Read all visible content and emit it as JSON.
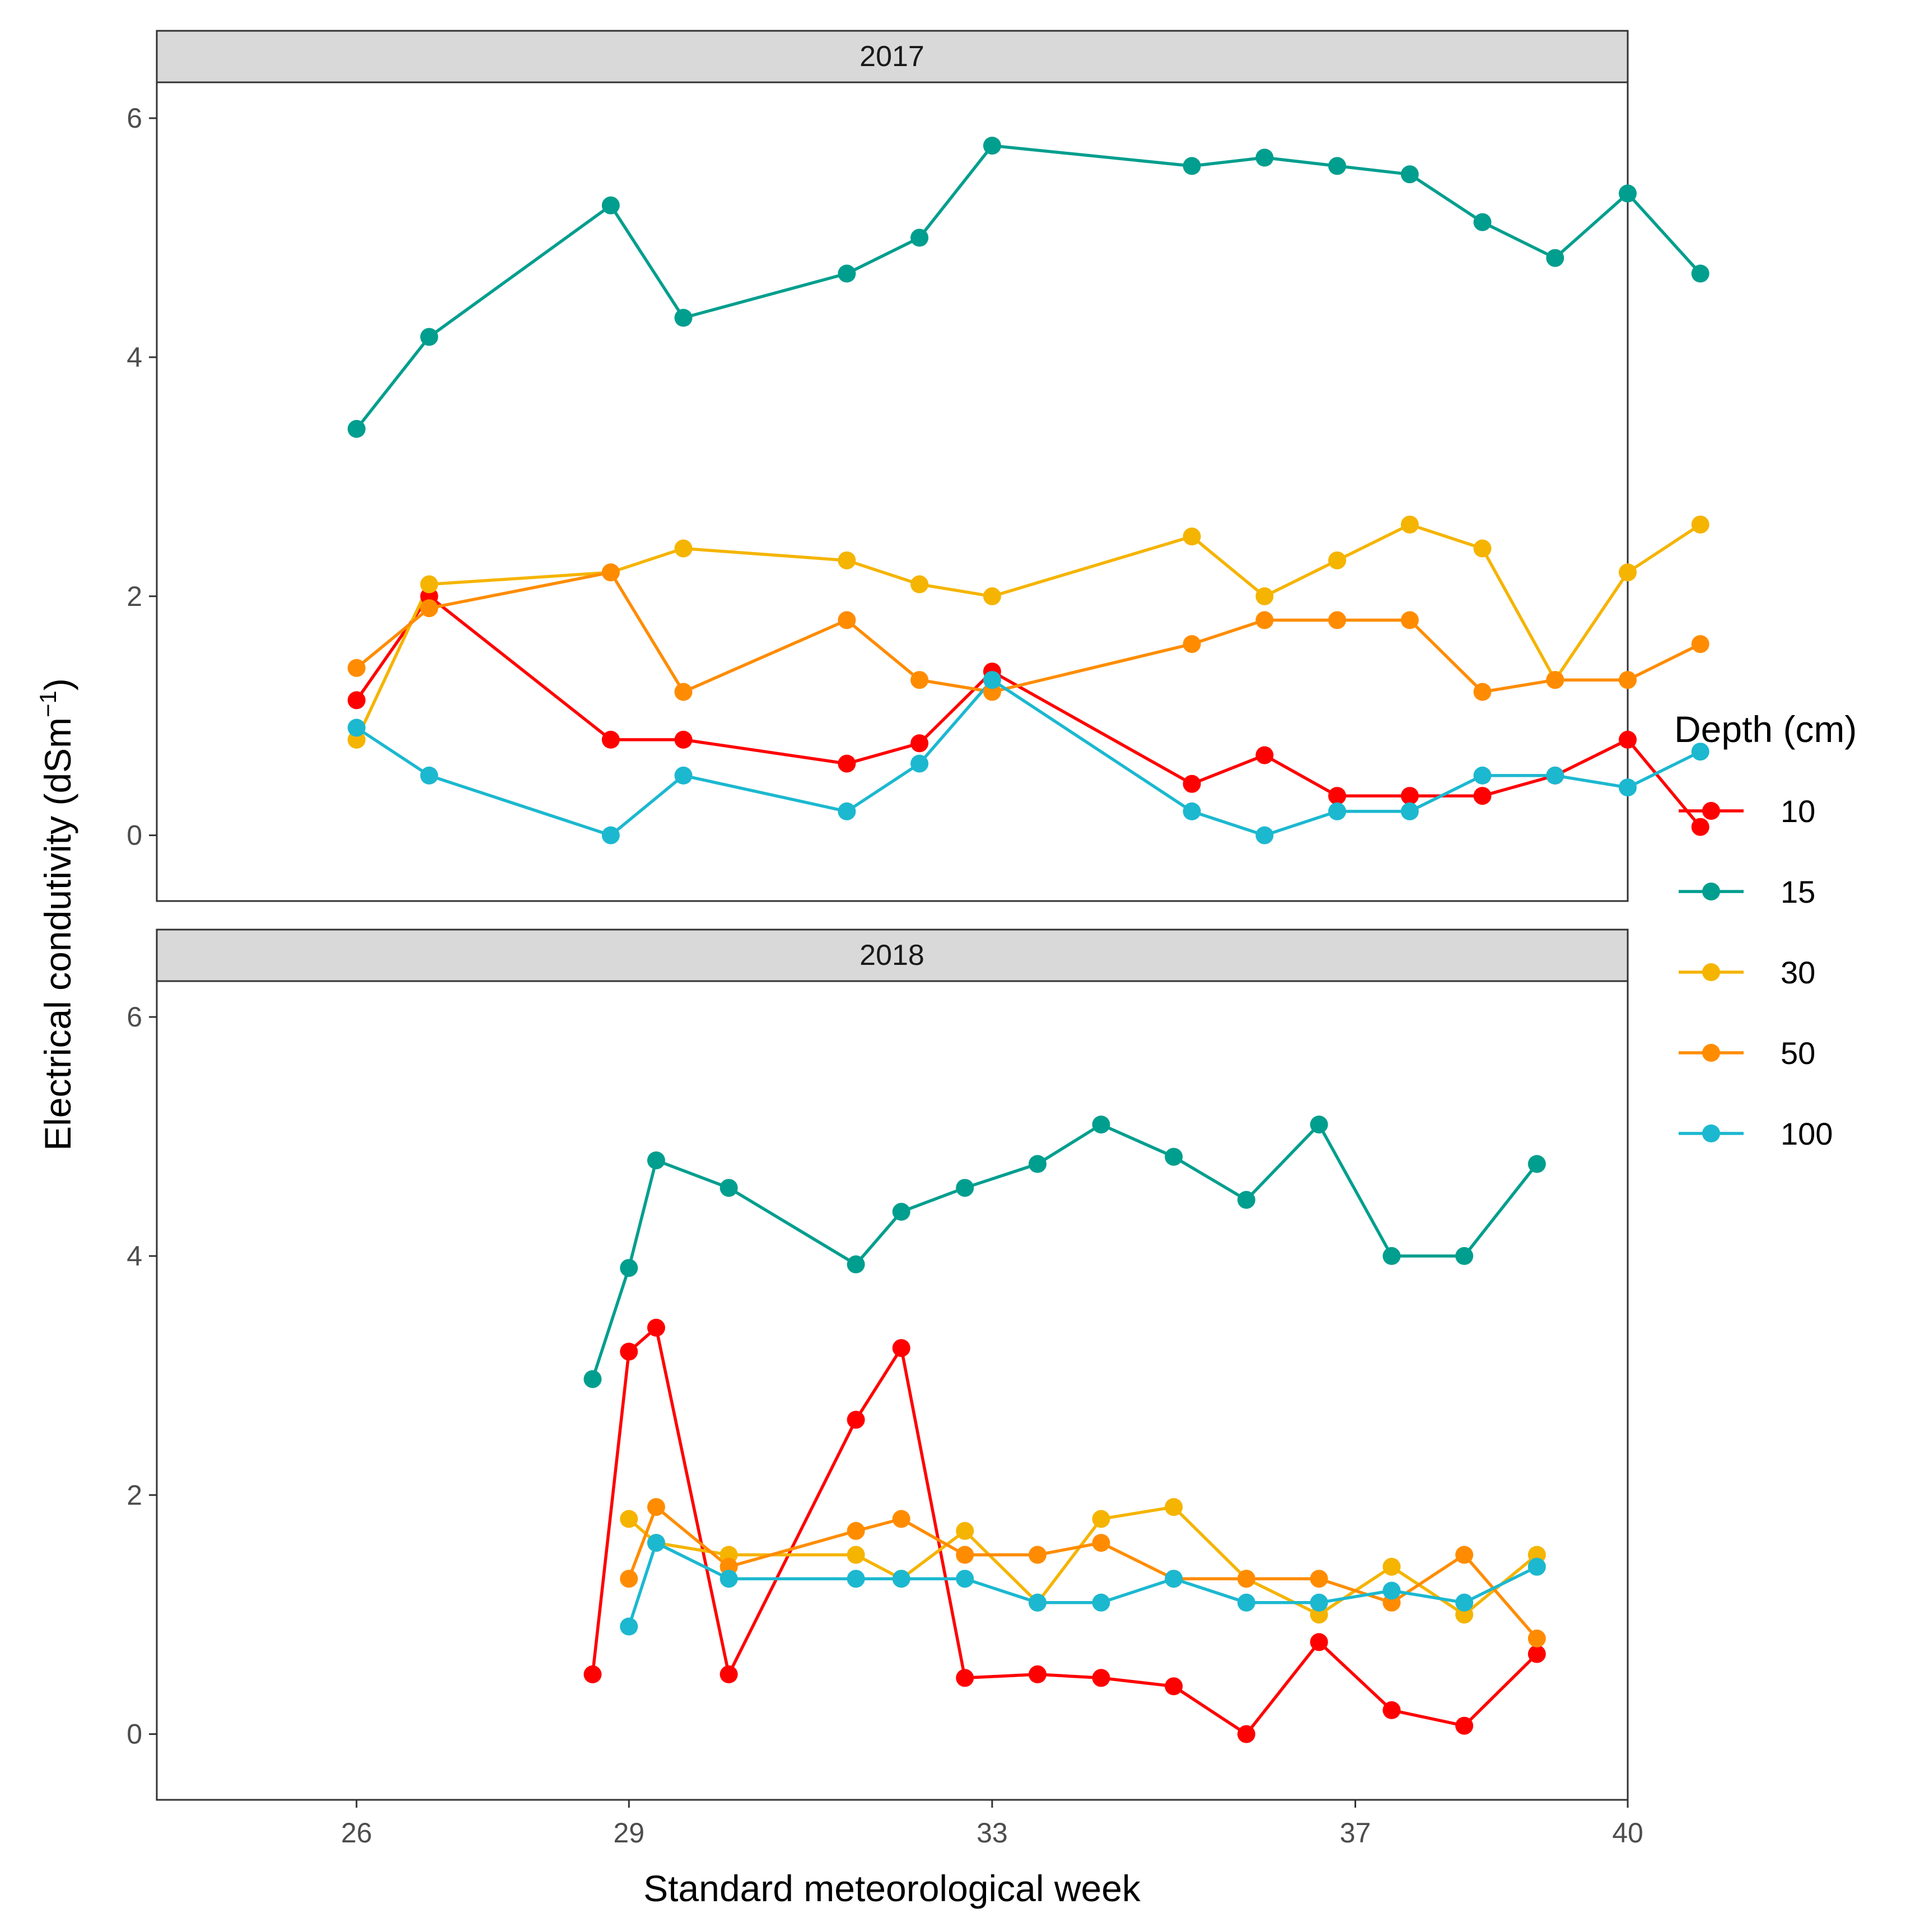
{
  "chart_data": {
    "type": "line",
    "xlabel": "Standard meteorological week",
    "ylabel": "Electrical condutivity (dSm",
    "ylabel_superscript": "−1",
    "ylabel_suffix": ")",
    "xlim": [
      23.8,
      40
    ],
    "xticks": [
      "26",
      "29",
      "33",
      "37",
      "40"
    ],
    "ylim": [
      -0.55,
      6.3
    ],
    "yticks": [
      "0",
      "2",
      "4",
      "6"
    ],
    "grid": false,
    "legend": {
      "title": "Depth (cm)",
      "position": "right",
      "entries": [
        "10",
        "15",
        "30",
        "50",
        "100"
      ]
    },
    "panels": [
      {
        "strip": "2017",
        "series": [
          {
            "name": "10",
            "color": "#FF0000",
            "points": [
              [
                26,
                1.13
              ],
              [
                26.8,
                2.0
              ],
              [
                28.8,
                0.8
              ],
              [
                29.6,
                0.8
              ],
              [
                31.4,
                0.6
              ],
              [
                32.2,
                0.77
              ],
              [
                33,
                1.37
              ],
              [
                35.2,
                0.43
              ],
              [
                36,
                0.67
              ],
              [
                36.8,
                0.33
              ],
              [
                37.6,
                0.33
              ],
              [
                38.4,
                0.33
              ],
              [
                39.2,
                0.5
              ],
              [
                40,
                0.8
              ],
              [
                40.8,
                0.07
              ]
            ]
          },
          {
            "name": "15",
            "color": "#009E8E",
            "points": [
              [
                26,
                3.4
              ],
              [
                26.8,
                4.17
              ],
              [
                28.8,
                5.27
              ],
              [
                29.6,
                4.33
              ],
              [
                31.4,
                4.7
              ],
              [
                32.2,
                5.0
              ],
              [
                33,
                5.77
              ],
              [
                35.2,
                5.6
              ],
              [
                36,
                5.67
              ],
              [
                36.8,
                5.6
              ],
              [
                37.6,
                5.53
              ],
              [
                38.4,
                5.13
              ],
              [
                39.2,
                4.83
              ],
              [
                40,
                5.37
              ],
              [
                40.8,
                4.7
              ]
            ]
          },
          {
            "name": "30",
            "color": "#F5B400",
            "points": [
              [
                26,
                0.8
              ],
              [
                26.8,
                2.1
              ],
              [
                28.8,
                2.2
              ],
              [
                29.6,
                2.4
              ],
              [
                31.4,
                2.3
              ],
              [
                32.2,
                2.1
              ],
              [
                33,
                2.0
              ],
              [
                35.2,
                2.5
              ],
              [
                36,
                2.0
              ],
              [
                36.8,
                2.3
              ],
              [
                37.6,
                2.6
              ],
              [
                38.4,
                2.4
              ],
              [
                39.2,
                1.3
              ],
              [
                40,
                2.2
              ],
              [
                40.8,
                2.6
              ]
            ]
          },
          {
            "name": "50",
            "color": "#FF8C00",
            "points": [
              [
                26,
                1.4
              ],
              [
                26.8,
                1.9
              ],
              [
                28.8,
                2.2
              ],
              [
                29.6,
                1.2
              ],
              [
                31.4,
                1.8
              ],
              [
                32.2,
                1.3
              ],
              [
                33,
                1.2
              ],
              [
                35.2,
                1.6
              ],
              [
                36,
                1.8
              ],
              [
                36.8,
                1.8
              ],
              [
                37.6,
                1.8
              ],
              [
                38.4,
                1.2
              ],
              [
                39.2,
                1.3
              ],
              [
                40,
                1.3
              ],
              [
                40.8,
                1.6
              ]
            ]
          },
          {
            "name": "100",
            "color": "#1CB8D0",
            "points": [
              [
                26,
                0.9
              ],
              [
                26.8,
                0.5
              ],
              [
                28.8,
                0.0
              ],
              [
                29.6,
                0.5
              ],
              [
                31.4,
                0.2
              ],
              [
                32.2,
                0.6
              ],
              [
                33,
                1.3
              ],
              [
                35.2,
                0.2
              ],
              [
                36,
                0.0
              ],
              [
                36.8,
                0.2
              ],
              [
                37.6,
                0.2
              ],
              [
                38.4,
                0.5
              ],
              [
                39.2,
                0.5
              ],
              [
                40,
                0.4
              ],
              [
                40.8,
                0.7
              ]
            ]
          }
        ]
      },
      {
        "strip": "2018",
        "series": [
          {
            "name": "10",
            "color": "#FF0000",
            "points": [
              [
                28.6,
                0.5
              ],
              [
                29.0,
                3.2
              ],
              [
                29.3,
                3.4
              ],
              [
                30.1,
                0.5
              ],
              [
                31.5,
                2.63
              ],
              [
                32.0,
                3.23
              ],
              [
                32.7,
                0.47
              ],
              [
                33.5,
                0.5
              ],
              [
                34.2,
                0.47
              ],
              [
                35.0,
                0.4
              ],
              [
                35.8,
                0.0
              ],
              [
                36.6,
                0.77
              ],
              [
                37.4,
                0.2
              ],
              [
                38.2,
                0.07
              ],
              [
                39.0,
                0.67
              ]
            ]
          },
          {
            "name": "15",
            "color": "#009E8E",
            "points": [
              [
                28.6,
                2.97
              ],
              [
                29.0,
                3.9
              ],
              [
                29.3,
                4.8
              ],
              [
                30.1,
                4.57
              ],
              [
                31.5,
                3.93
              ],
              [
                32.0,
                4.37
              ],
              [
                32.7,
                4.57
              ],
              [
                33.5,
                4.77
              ],
              [
                34.2,
                5.1
              ],
              [
                35.0,
                4.83
              ],
              [
                35.8,
                4.47
              ],
              [
                36.6,
                5.1
              ],
              [
                37.4,
                4.0
              ],
              [
                38.2,
                4.0
              ],
              [
                39.0,
                4.77
              ]
            ]
          },
          {
            "name": "30",
            "color": "#F5B400",
            "points": [
              [
                29.0,
                1.8
              ],
              [
                29.3,
                1.6
              ],
              [
                30.1,
                1.5
              ],
              [
                31.5,
                1.5
              ],
              [
                32.0,
                1.3
              ],
              [
                32.7,
                1.7
              ],
              [
                33.5,
                1.1
              ],
              [
                34.2,
                1.8
              ],
              [
                35.0,
                1.9
              ],
              [
                35.8,
                1.3
              ],
              [
                36.6,
                1.0
              ],
              [
                37.4,
                1.4
              ],
              [
                38.2,
                1.0
              ],
              [
                39.0,
                1.5
              ]
            ]
          },
          {
            "name": "50",
            "color": "#FF8C00",
            "points": [
              [
                29.0,
                1.3
              ],
              [
                29.3,
                1.9
              ],
              [
                30.1,
                1.4
              ],
              [
                31.5,
                1.7
              ],
              [
                32.0,
                1.8
              ],
              [
                32.7,
                1.5
              ],
              [
                33.5,
                1.5
              ],
              [
                34.2,
                1.6
              ],
              [
                35.0,
                1.3
              ],
              [
                35.8,
                1.3
              ],
              [
                36.6,
                1.3
              ],
              [
                37.4,
                1.1
              ],
              [
                38.2,
                1.5
              ],
              [
                39.0,
                0.8
              ]
            ]
          },
          {
            "name": "100",
            "color": "#1CB8D0",
            "points": [
              [
                29.0,
                0.9
              ],
              [
                29.3,
                1.6
              ],
              [
                30.1,
                1.3
              ],
              [
                31.5,
                1.3
              ],
              [
                32.0,
                1.3
              ],
              [
                32.7,
                1.3
              ],
              [
                33.5,
                1.1
              ],
              [
                34.2,
                1.1
              ],
              [
                35.0,
                1.3
              ],
              [
                35.8,
                1.1
              ],
              [
                36.6,
                1.1
              ],
              [
                37.4,
                1.2
              ],
              [
                38.2,
                1.1
              ],
              [
                39.0,
                1.4
              ]
            ]
          }
        ]
      }
    ]
  }
}
